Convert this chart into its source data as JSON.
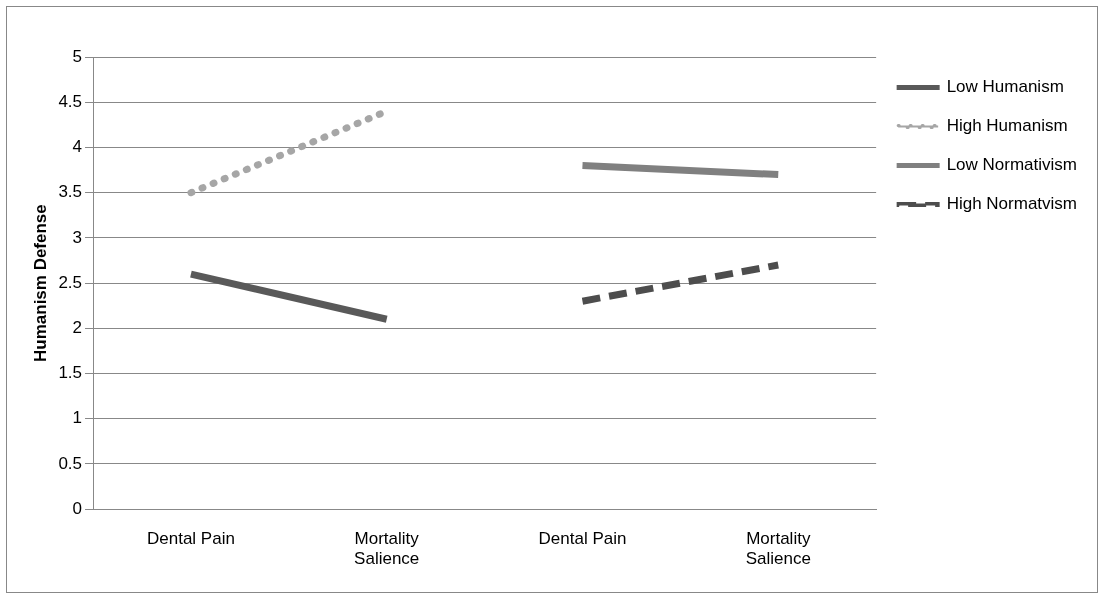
{
  "chart_data": {
    "type": "line",
    "ylabel": "Humanism Defense",
    "categories": [
      "Dental Pain",
      "Mortality Salience",
      "Dental Pain",
      "Mortality Salience"
    ],
    "series": [
      {
        "name": "Low Humanism",
        "color": "#595959",
        "line_style": "solid",
        "values": [
          2.6,
          2.1,
          null,
          null
        ]
      },
      {
        "name": "High Humanism",
        "color": "#a6a6a6",
        "line_style": "dotted",
        "values": [
          3.5,
          4.4,
          null,
          null
        ]
      },
      {
        "name": "Low Normativism",
        "color": "#808080",
        "line_style": "solid",
        "values": [
          null,
          null,
          3.8,
          3.7
        ]
      },
      {
        "name": "High Normatvism",
        "color": "#4d4d4d",
        "line_style": "dashed",
        "values": [
          null,
          null,
          2.3,
          2.7
        ]
      }
    ],
    "ylim": [
      0,
      5
    ],
    "yticks": [
      0,
      0.5,
      1,
      1.5,
      2,
      2.5,
      3,
      3.5,
      4,
      4.5,
      5
    ],
    "grid": "y",
    "legend": "right",
    "marker": "none"
  }
}
